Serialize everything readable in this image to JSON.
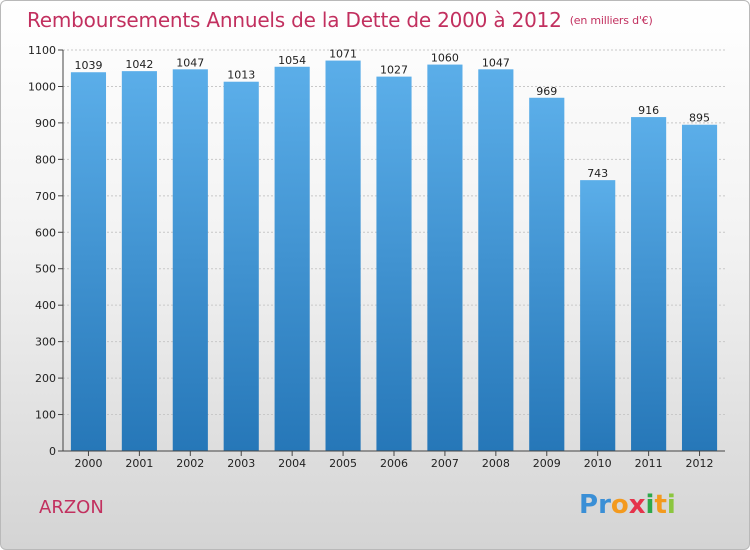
{
  "title": "Remboursements Annuels de la Dette de 2000 à 2012",
  "title_unit": "(en milliers d'€)",
  "city": "ARZON",
  "logo": {
    "letters": [
      {
        "ch": "P",
        "color": "#3a8fd6"
      },
      {
        "ch": "r",
        "color": "#3a8fd6"
      },
      {
        "ch": "o",
        "color": "#f39a1e"
      },
      {
        "ch": "x",
        "color": "#e5334b"
      },
      {
        "ch": "i",
        "color": "#2da84a"
      },
      {
        "ch": "t",
        "color": "#f39a1e"
      },
      {
        "ch": "i",
        "color": "#8cc63f"
      }
    ]
  },
  "colors": {
    "title": "#c2305f",
    "bar_top": "#5baee9",
    "bar_bottom": "#2677b8"
  },
  "chart_data": {
    "type": "bar",
    "categories": [
      "2000",
      "2001",
      "2002",
      "2003",
      "2004",
      "2005",
      "2006",
      "2007",
      "2008",
      "2009",
      "2010",
      "2011",
      "2012"
    ],
    "values": [
      1039,
      1042,
      1047,
      1013,
      1054,
      1071,
      1027,
      1060,
      1047,
      969,
      743,
      916,
      895
    ],
    "ylim": [
      0,
      1100
    ],
    "yticks": [
      0,
      100,
      200,
      300,
      400,
      500,
      600,
      700,
      800,
      900,
      1000,
      1100
    ],
    "grid": true,
    "legend": "none"
  }
}
